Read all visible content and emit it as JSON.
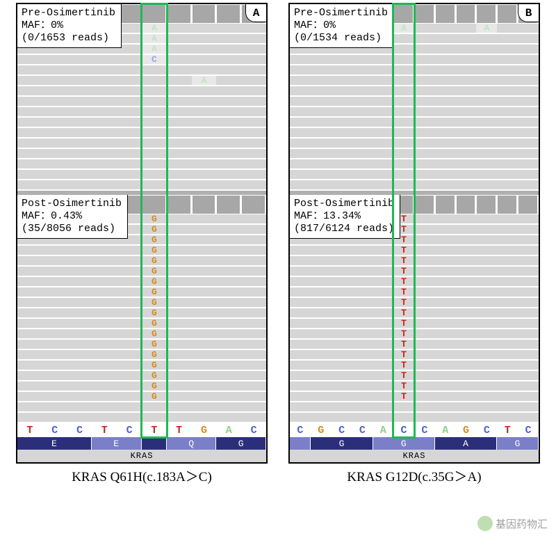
{
  "colors": {
    "base_A": "#8fcf8f",
    "base_C": "#4a5fd0",
    "base_G": "#d68a1e",
    "base_T": "#d02020",
    "read_bg": "#d6d6d6",
    "cov_bg": "#a7a7a7",
    "aa_bg1": "#2b2f7a",
    "aa_bg2": "#7a7fc8",
    "highlight": "#1db954",
    "gene_bg": "#d6d6d6"
  },
  "gene_label": "KRAS",
  "panels": [
    {
      "id": "A",
      "caption": "KRAS Q61H(c.183A＞C)",
      "highlight_col": 5,
      "pre": {
        "label_line1": "Pre-Osimertinib",
        "label_line2": "MAF：0%",
        "label_line3": "(0/1653 reads)",
        "rows": 16,
        "variants": [
          {
            "row": 0,
            "col": 5,
            "base": "A",
            "faint": true
          },
          {
            "row": 1,
            "col": 5,
            "base": "A",
            "faint": true
          },
          {
            "row": 2,
            "col": 5,
            "base": "A",
            "faint": true
          },
          {
            "row": 3,
            "col": 5,
            "base": "C",
            "faint": true
          },
          {
            "row": 5,
            "col": 7,
            "base": "A",
            "faint": true
          }
        ]
      },
      "post": {
        "label_line1": "Post-Osimertinib",
        "label_line2": "MAF：0.43%",
        "label_line3": "(35/8056 reads)",
        "rows": 20,
        "variants": [
          {
            "row": 0,
            "col": 5,
            "base": "G"
          },
          {
            "row": 1,
            "col": 5,
            "base": "G"
          },
          {
            "row": 2,
            "col": 5,
            "base": "G"
          },
          {
            "row": 3,
            "col": 5,
            "base": "G"
          },
          {
            "row": 4,
            "col": 5,
            "base": "G"
          },
          {
            "row": 5,
            "col": 5,
            "base": "G"
          },
          {
            "row": 6,
            "col": 5,
            "base": "G"
          },
          {
            "row": 7,
            "col": 5,
            "base": "G"
          },
          {
            "row": 8,
            "col": 5,
            "base": "G"
          },
          {
            "row": 9,
            "col": 5,
            "base": "G"
          },
          {
            "row": 10,
            "col": 5,
            "base": "G"
          },
          {
            "row": 11,
            "col": 5,
            "base": "G"
          },
          {
            "row": 12,
            "col": 5,
            "base": "G"
          },
          {
            "row": 13,
            "col": 5,
            "base": "G"
          },
          {
            "row": 14,
            "col": 5,
            "base": "G"
          },
          {
            "row": 15,
            "col": 5,
            "base": "G"
          },
          {
            "row": 16,
            "col": 5,
            "base": "G"
          },
          {
            "row": 17,
            "col": 5,
            "base": "G"
          }
        ]
      },
      "ref_seq": [
        "T",
        "C",
        "C",
        "T",
        "C",
        "T",
        "T",
        "G",
        "A",
        "C"
      ],
      "aa": [
        {
          "label": "E",
          "span": 3,
          "shade": 1
        },
        {
          "label": "E",
          "span": 2,
          "shade": 2
        },
        {
          "label": "",
          "span": 1,
          "shade": 1
        },
        {
          "label": "Q",
          "span": 2,
          "shade": 2
        },
        {
          "label": "G",
          "span": 2,
          "shade": 1
        }
      ]
    },
    {
      "id": "B",
      "caption": "KRAS G12D(c.35G＞A)",
      "highlight_col": 5,
      "pre": {
        "label_line1": "Pre-Osimertinib",
        "label_line2": "MAF：0%",
        "label_line3": "(0/1534 reads)",
        "rows": 16,
        "variants": [
          {
            "row": 0,
            "col": 5,
            "base": "A",
            "faint": true
          },
          {
            "row": 0,
            "col": 9,
            "base": "A",
            "faint": true
          }
        ]
      },
      "post": {
        "label_line1": "Post-Osimertinib",
        "label_line2": "MAF：13.34%",
        "label_line3": "(817/6124 reads)",
        "rows": 20,
        "variants": [
          {
            "row": 0,
            "col": 5,
            "base": "T"
          },
          {
            "row": 1,
            "col": 5,
            "base": "T"
          },
          {
            "row": 2,
            "col": 5,
            "base": "T"
          },
          {
            "row": 3,
            "col": 5,
            "base": "T"
          },
          {
            "row": 4,
            "col": 5,
            "base": "T"
          },
          {
            "row": 5,
            "col": 5,
            "base": "T"
          },
          {
            "row": 6,
            "col": 5,
            "base": "T"
          },
          {
            "row": 7,
            "col": 5,
            "base": "T"
          },
          {
            "row": 8,
            "col": 5,
            "base": "T"
          },
          {
            "row": 9,
            "col": 5,
            "base": "T"
          },
          {
            "row": 10,
            "col": 5,
            "base": "T"
          },
          {
            "row": 11,
            "col": 5,
            "base": "T"
          },
          {
            "row": 12,
            "col": 5,
            "base": "T"
          },
          {
            "row": 13,
            "col": 5,
            "base": "T"
          },
          {
            "row": 14,
            "col": 5,
            "base": "T"
          },
          {
            "row": 15,
            "col": 5,
            "base": "T"
          },
          {
            "row": 16,
            "col": 5,
            "base": "T"
          },
          {
            "row": 17,
            "col": 5,
            "base": "T"
          }
        ]
      },
      "ref_seq": [
        "C",
        "G",
        "C",
        "C",
        "A",
        "C",
        "C",
        "A",
        "G",
        "C",
        "T",
        "C"
      ],
      "aa": [
        {
          "label": "",
          "span": 1,
          "shade": 2
        },
        {
          "label": "G",
          "span": 3,
          "shade": 1
        },
        {
          "label": "G",
          "span": 3,
          "shade": 2
        },
        {
          "label": "A",
          "span": 3,
          "shade": 1
        },
        {
          "label": "G",
          "span": 2,
          "shade": 2
        }
      ]
    }
  ],
  "watermark": "基因药物汇"
}
